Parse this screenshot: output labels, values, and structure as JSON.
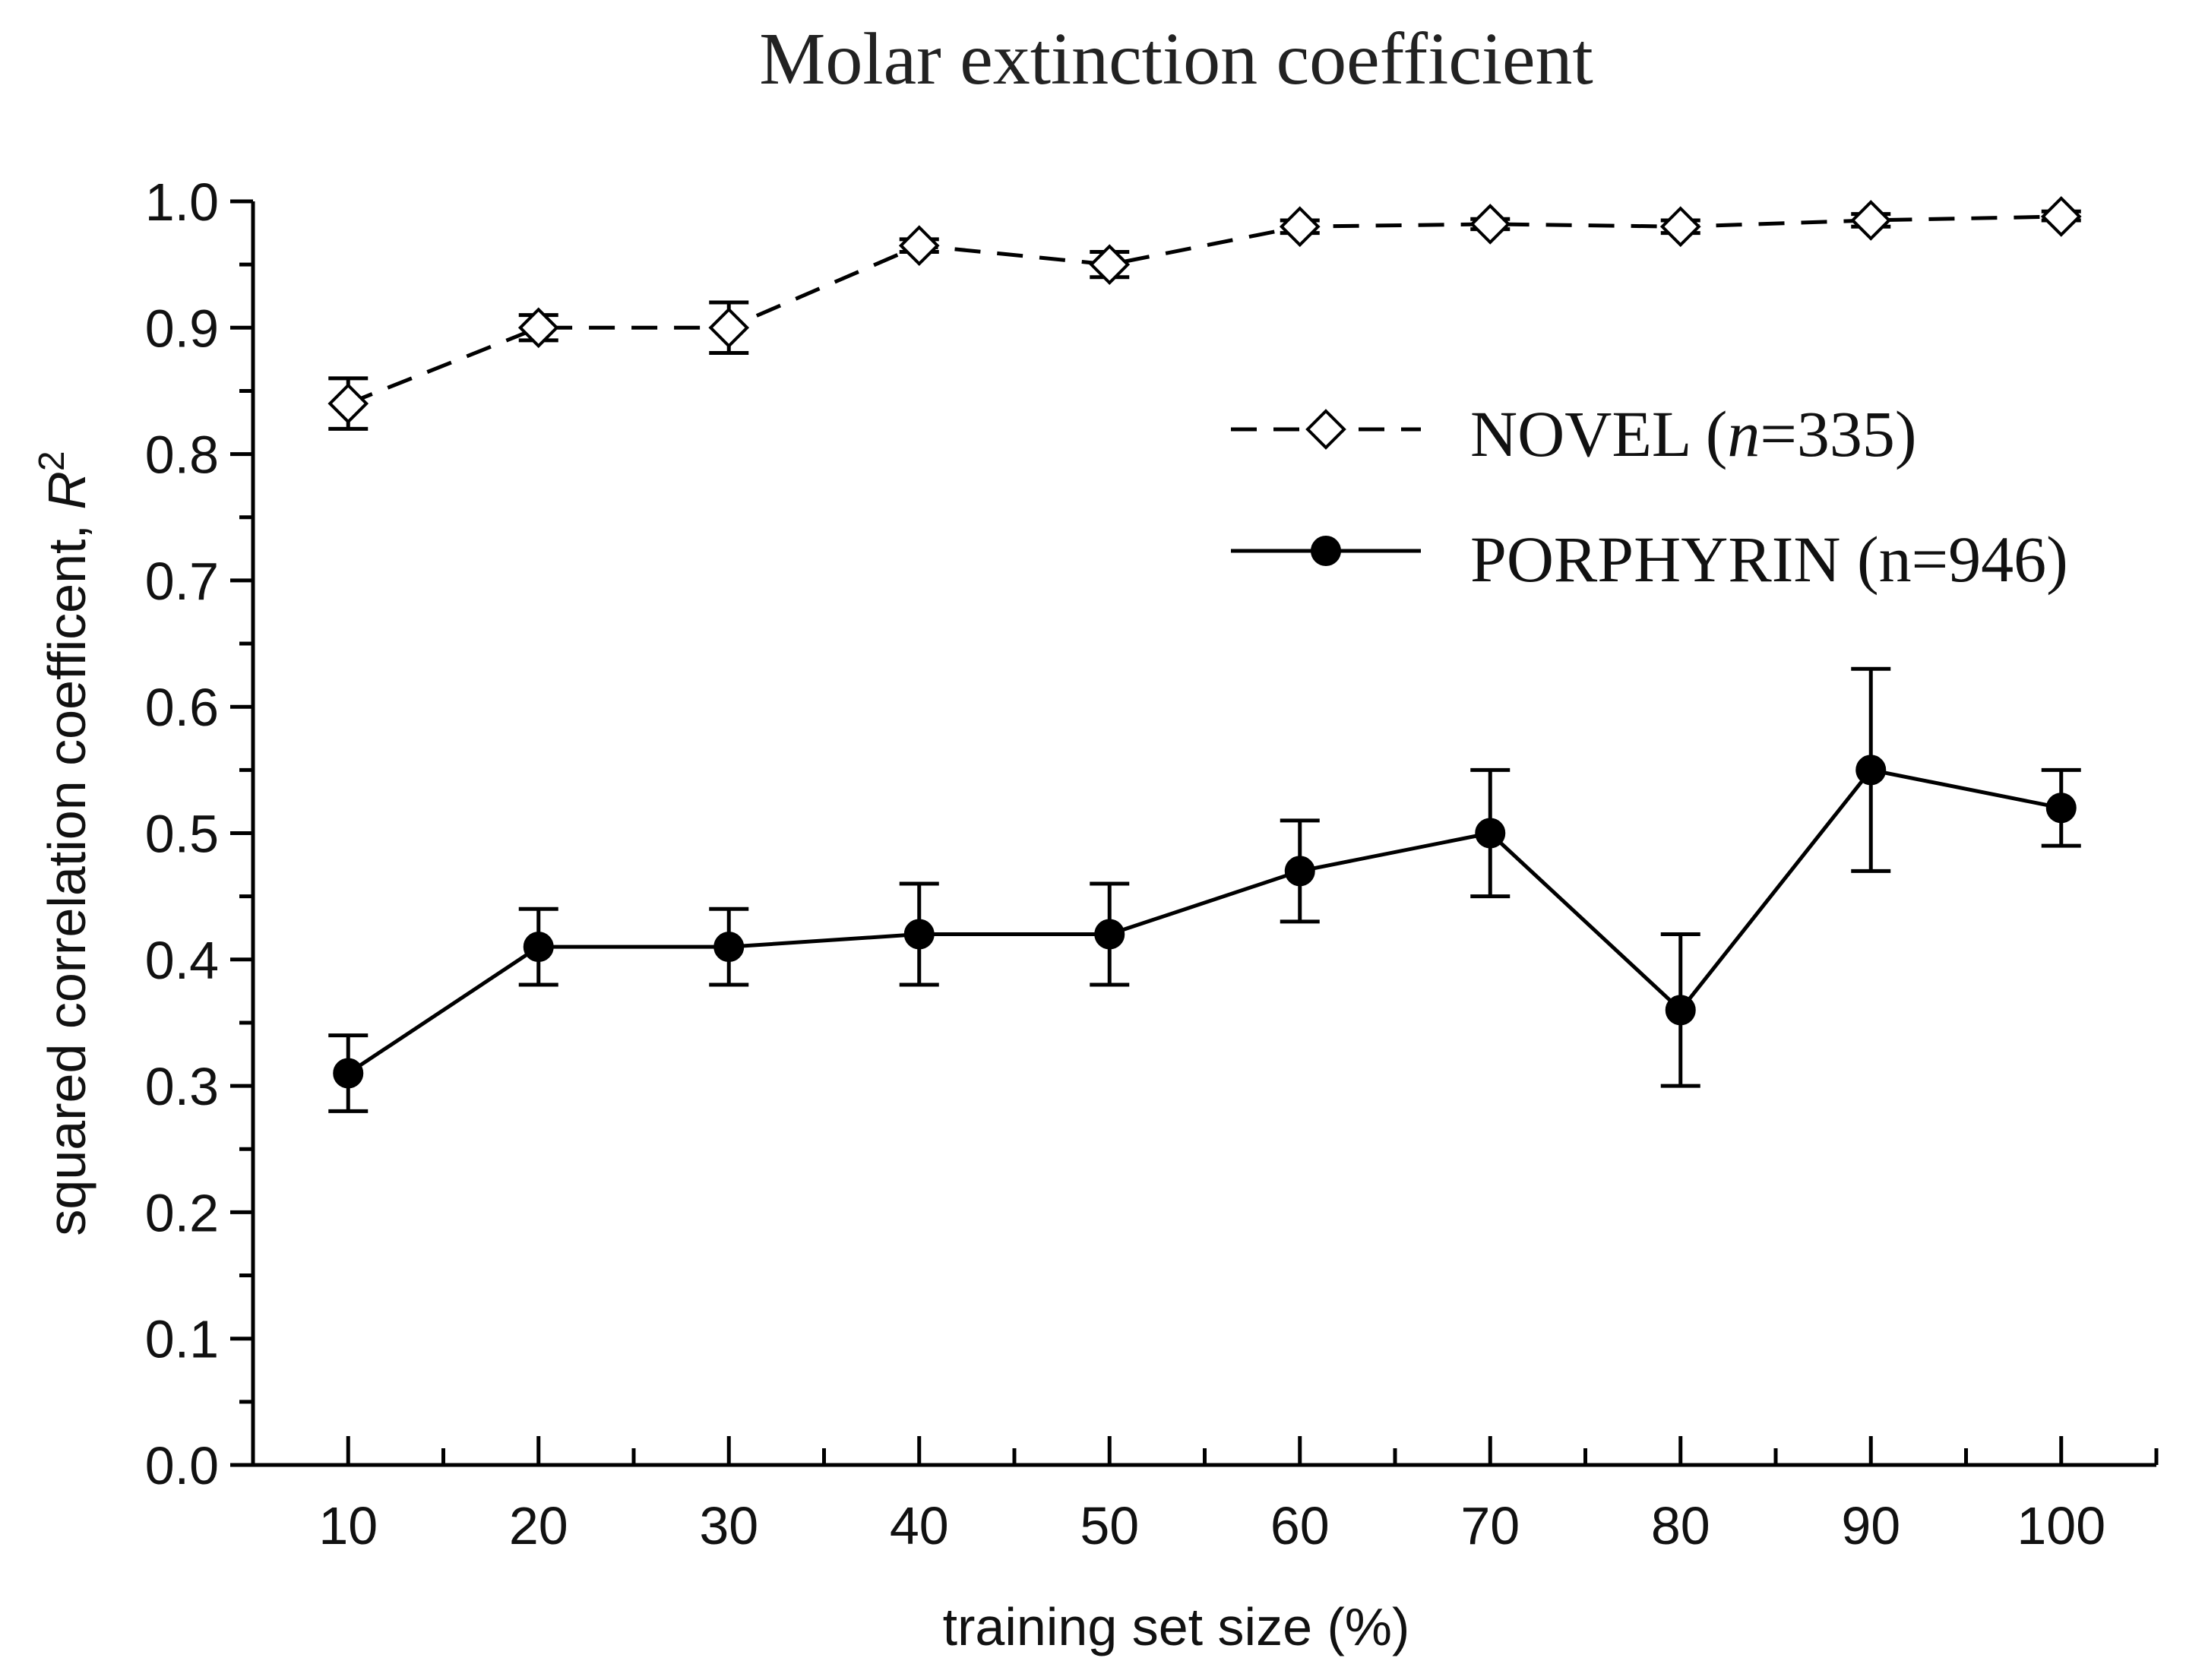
{
  "chart_data": {
    "type": "line",
    "title": "Molar extinction coefficient",
    "xlabel": "training set size (%)",
    "ylabel_prefix": "squared correlation coefficent, ",
    "ylabel_symbol": "R",
    "ylabel_superscript": "2",
    "x": [
      10,
      20,
      30,
      40,
      50,
      60,
      70,
      80,
      90,
      100
    ],
    "x_tick_labels": [
      "10",
      "20",
      "30",
      "40",
      "50",
      "60",
      "70",
      "80",
      "90",
      "100"
    ],
    "xlim": [
      5,
      105
    ],
    "ylim": [
      0.0,
      1.0
    ],
    "y_ticks": [
      0.0,
      0.1,
      0.2,
      0.3,
      0.4,
      0.5,
      0.6,
      0.7,
      0.8,
      0.9,
      1.0
    ],
    "y_tick_labels": [
      "0.0",
      "0.1",
      "0.2",
      "0.3",
      "0.4",
      "0.5",
      "0.6",
      "0.7",
      "0.8",
      "0.9",
      "1.0"
    ],
    "grid": false,
    "legend_position": "right-middle",
    "series": [
      {
        "name": "NOVEL",
        "legend_prefix": "NOVEL (",
        "legend_n_symbol": "n",
        "legend_suffix": "=335)",
        "line_style": "dashed",
        "marker": "open-diamond",
        "values": [
          0.84,
          0.9,
          0.9,
          0.965,
          0.95,
          0.98,
          0.982,
          0.98,
          0.985,
          0.988
        ],
        "err_low": [
          0.82,
          0.89,
          0.88,
          0.96,
          0.94,
          0.975,
          0.978,
          0.975,
          0.98,
          0.985
        ],
        "err_high": [
          0.86,
          0.91,
          0.92,
          0.97,
          0.96,
          0.985,
          0.986,
          0.985,
          0.99,
          0.992
        ]
      },
      {
        "name": "PORPHYRIN",
        "legend_prefix": "PORPHYRIN (n=946)",
        "legend_n_symbol": "",
        "legend_suffix": "",
        "line_style": "solid",
        "marker": "filled-circle",
        "values": [
          0.31,
          0.41,
          0.41,
          0.42,
          0.42,
          0.47,
          0.5,
          0.36,
          0.55,
          0.52
        ],
        "err_low": [
          0.28,
          0.38,
          0.38,
          0.38,
          0.38,
          0.43,
          0.45,
          0.3,
          0.47,
          0.49
        ],
        "err_high": [
          0.34,
          0.44,
          0.44,
          0.46,
          0.46,
          0.51,
          0.55,
          0.42,
          0.63,
          0.55
        ]
      }
    ]
  }
}
